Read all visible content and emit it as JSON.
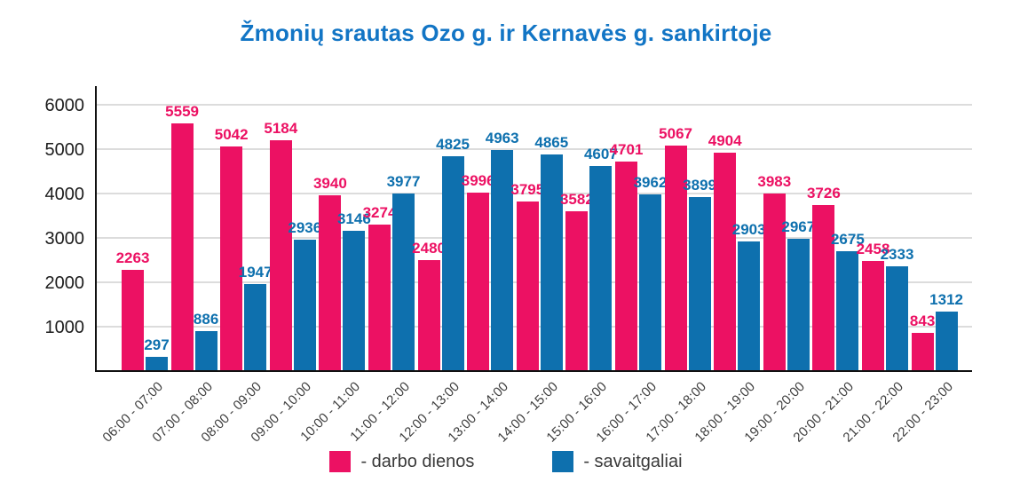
{
  "title": "Žmonių srautas Ozo g. ir Kernavės g. sankirtoje",
  "colors": {
    "workdays_pink": "#ec1163",
    "weekends_blue": "#0e70ae",
    "title_blue": "#1275c5",
    "grid": "#dcdcdc",
    "axis": "#111111"
  },
  "chart_data": {
    "type": "bar",
    "title": "Žmonių srautas Ozo g. ir Kernavės g. sankirtoje",
    "categories": [
      "06:00 - 07:00",
      "07:00 - 08:00",
      "08:00 - 09:00",
      "09:00 - 10:00",
      "10:00 - 11:00",
      "11:00 - 12:00",
      "12:00 - 13:00",
      "13:00 - 14:00",
      "14:00 - 15:00",
      "15:00 - 16:00",
      "16:00 - 17:00",
      "17:00 - 18:00",
      "18:00 - 19:00",
      "19:00 - 20:00",
      "20:00 - 21:00",
      "21:00 - 22:00",
      "22:00 - 23:00"
    ],
    "series": [
      {
        "name": "darbo dienos",
        "legend_label": "- darbo dienos",
        "color": "#ec1163",
        "values": [
          2263,
          5559,
          5042,
          5184,
          3940,
          3274,
          2480,
          3996,
          3795,
          3582,
          4701,
          5067,
          4904,
          3983,
          3726,
          2458,
          843
        ]
      },
      {
        "name": "savaitgaliai",
        "legend_label": "- savaitgaliai",
        "color": "#0e70ae",
        "values": [
          297,
          886,
          1947,
          2936,
          3146,
          3977,
          4825,
          4963,
          4865,
          4607,
          3962,
          3899,
          2903,
          2967,
          2675,
          2333,
          1312
        ]
      }
    ],
    "xlabel": "",
    "ylabel": "",
    "ylim": [
      0,
      6000
    ],
    "yticks": [
      1000,
      2000,
      3000,
      4000,
      5000,
      6000
    ],
    "grid": true,
    "data_labels": true,
    "legend_position": "bottom"
  }
}
